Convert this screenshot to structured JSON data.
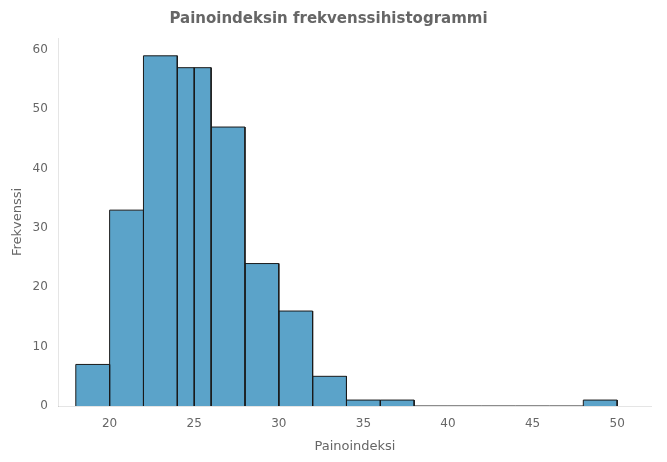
{
  "chart_data": {
    "type": "histogram",
    "title": "Painoindeksin frekvenssihistogrammi",
    "xlabel": "Painoindeksi",
    "ylabel": "Frekvenssi",
    "color": "#5BA3C9",
    "bins": [
      18,
      20,
      22,
      24,
      25,
      26,
      28,
      30,
      32,
      34,
      36,
      38,
      40,
      42,
      44,
      46,
      48,
      50
    ],
    "values": [
      7,
      33,
      59,
      57,
      57,
      47,
      24,
      16,
      5,
      1,
      1,
      0,
      0,
      0,
      0,
      0,
      1
    ],
    "xlim": [
      17,
      52
    ],
    "ylim": [
      0,
      62
    ],
    "xticks": [
      20,
      25,
      30,
      35,
      40,
      45,
      50
    ],
    "yticks": [
      0,
      10,
      20,
      30,
      40,
      50,
      60
    ],
    "grid": false
  }
}
